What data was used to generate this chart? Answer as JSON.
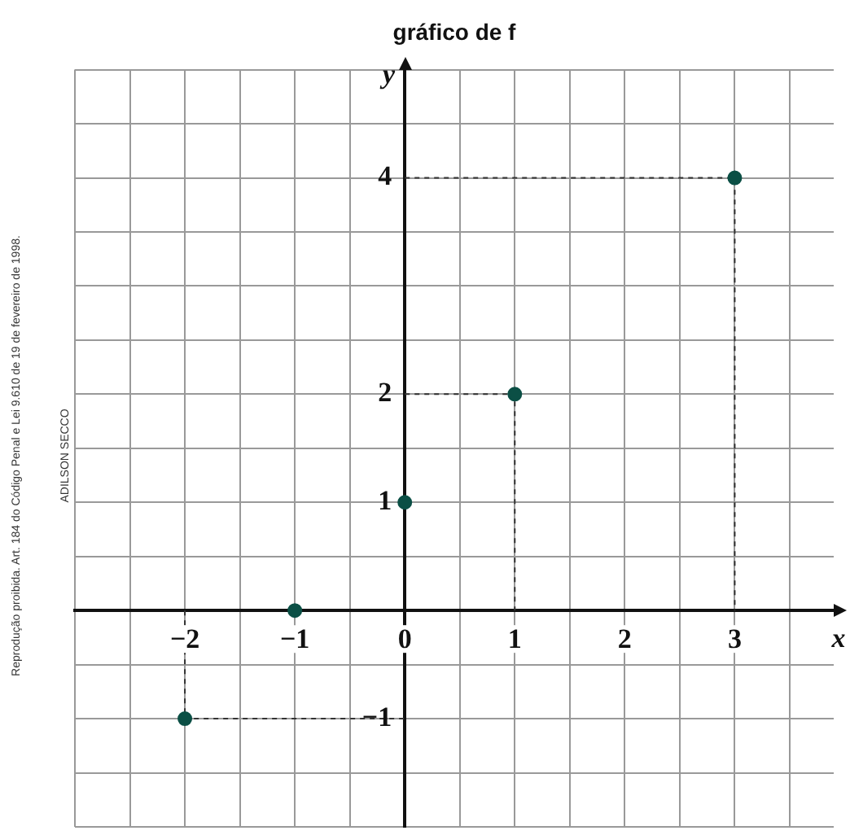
{
  "chart_data": {
    "type": "scatter",
    "title": "gráfico de f",
    "xlabel": "x",
    "ylabel": "y",
    "grid": true,
    "series": [
      {
        "color": "#0b4f45",
        "marker": "circle",
        "x": [
          -2,
          -1,
          0,
          1,
          3
        ],
        "values": [
          -1,
          0,
          1,
          2,
          4
        ]
      },
      {
        "type": "line",
        "color": "#333333",
        "marker": "none",
        "line_style": "dashed",
        "x": [
          -2,
          -2,
          0
        ],
        "values": [
          0,
          -1,
          -1
        ]
      },
      {
        "type": "line",
        "color": "#333333",
        "marker": "none",
        "line_style": "dashed",
        "x": [
          0,
          1,
          1
        ],
        "values": [
          2,
          2,
          0
        ]
      },
      {
        "type": "line",
        "color": "#333333",
        "marker": "none",
        "line_style": "dashed",
        "x": [
          0,
          3,
          3
        ],
        "values": [
          4,
          4,
          0
        ]
      }
    ],
    "xlim": [
      -3,
      3.9
    ],
    "ylim": [
      -2,
      5
    ],
    "xticks": [
      {
        "value": -3,
        "label": null
      },
      {
        "value": -2.5,
        "label": null
      },
      {
        "value": -2,
        "label": "−2"
      },
      {
        "value": -1.5,
        "label": null
      },
      {
        "value": -1,
        "label": "−1"
      },
      {
        "value": -0.5,
        "label": null
      },
      {
        "value": 0,
        "label": "0"
      },
      {
        "value": 0.5,
        "label": null
      },
      {
        "value": 1,
        "label": "1"
      },
      {
        "value": 1.5,
        "label": null
      },
      {
        "value": 2,
        "label": "2"
      },
      {
        "value": 2.5,
        "label": null
      },
      {
        "value": 3,
        "label": "3"
      },
      {
        "value": 3.5,
        "label": null
      }
    ],
    "yticks": [
      {
        "value": -2,
        "label": null
      },
      {
        "value": -1.5,
        "label": null
      },
      {
        "value": -1,
        "label": "−1"
      },
      {
        "value": -0.5,
        "label": null
      },
      {
        "value": 0,
        "label": null
      },
      {
        "value": 0.5,
        "label": null
      },
      {
        "value": 1,
        "label": "1"
      },
      {
        "value": 1.5,
        "label": null
      },
      {
        "value": 2,
        "label": "2"
      },
      {
        "value": 2.5,
        "label": null
      },
      {
        "value": 3,
        "label": null
      },
      {
        "value": 3.5,
        "label": null
      },
      {
        "value": 4,
        "label": "4"
      },
      {
        "value": 4.5,
        "label": null
      },
      {
        "value": 5,
        "label": null
      }
    ],
    "annotations": [
      "Reprodução proibida. Art. 184 do Código Penal e Lei 9.610 de 19 de fevereiro de 1998.",
      "ADILSON SECCO"
    ]
  }
}
